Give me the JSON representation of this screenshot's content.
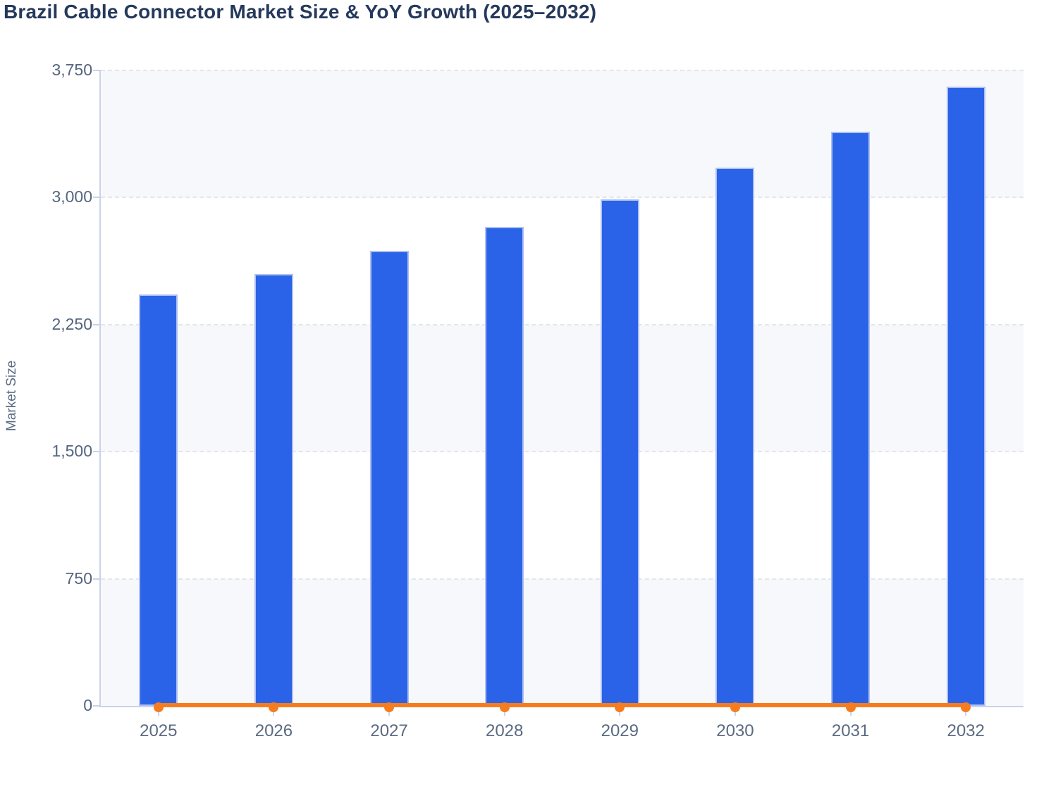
{
  "chart_data": {
    "type": "bar",
    "title": "Brazil Cable Connector Market Size & YoY Growth (2025–2032)",
    "xlabel": "",
    "ylabel": "Market Size",
    "categories": [
      "2025",
      "2026",
      "2027",
      "2028",
      "2029",
      "2030",
      "2031",
      "2032"
    ],
    "series": [
      {
        "name": "Market Size",
        "type": "bar",
        "values": [
          2430,
          2550,
          2685,
          2825,
          2990,
          3175,
          3390,
          3655
        ]
      },
      {
        "name": "YoY Growth",
        "type": "line",
        "values": [
          0,
          0,
          0,
          0,
          0,
          0,
          0,
          0
        ]
      }
    ],
    "ylim": [
      0,
      3750
    ],
    "yticks": [
      {
        "label": "0",
        "value": 0
      },
      {
        "label": "750",
        "value": 750
      },
      {
        "label": "1,500",
        "value": 1500
      },
      {
        "label": "2,250",
        "value": 2250
      },
      {
        "label": "3,000",
        "value": 3000
      },
      {
        "label": "3,750",
        "value": 3750
      }
    ],
    "grid": "horizontal-dashed",
    "legend": "none",
    "band_fill": "alternating"
  },
  "theme": {
    "bar_color": "#2a63e8",
    "bar_border_color": "#adc0f2",
    "line_color": "#f57d1f",
    "band_light_color": "#f7f8fb",
    "grid_color": "#e4e6ea",
    "axis_color": "#c9d3e8",
    "title_color": "#25395c",
    "tick_label_color": "#55657f",
    "x_label_color": "#5a6a82"
  }
}
